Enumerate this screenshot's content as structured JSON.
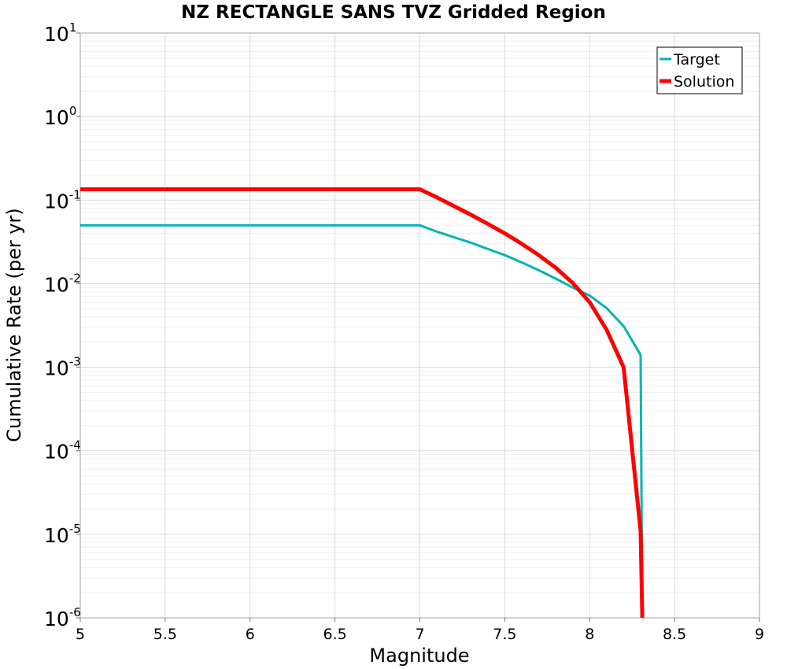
{
  "chart_data": {
    "type": "line",
    "title": "NZ RECTANGLE SANS TVZ Gridded Region",
    "xlabel": "Magnitude",
    "ylabel": "Cumulative Rate (per yr)",
    "xlim": [
      5,
      9
    ],
    "ylim": [
      1e-06,
      10
    ],
    "y_scale": "log",
    "grid": true,
    "legend_position": "top-right",
    "x_ticks": [
      "5",
      "5.5",
      "6",
      "6.5",
      "7",
      "7.5",
      "8",
      "8.5",
      "9"
    ],
    "y_ticks": [
      {
        "base": "10",
        "exp": "1"
      },
      {
        "base": "10",
        "exp": "0"
      },
      {
        "base": "10",
        "exp": "-1"
      },
      {
        "base": "10",
        "exp": "-2"
      },
      {
        "base": "10",
        "exp": "-3"
      },
      {
        "base": "10",
        "exp": "-4"
      },
      {
        "base": "10",
        "exp": "-5"
      },
      {
        "base": "10",
        "exp": "-6"
      }
    ],
    "series": [
      {
        "name": "Target",
        "color": "#00b4b4",
        "x": [
          5.0,
          7.0,
          7.1,
          7.2,
          7.3,
          7.4,
          7.5,
          7.6,
          7.7,
          7.8,
          7.9,
          8.0,
          8.1,
          8.2,
          8.3,
          8.31
        ],
        "y": [
          0.05,
          0.05,
          0.042,
          0.036,
          0.031,
          0.026,
          0.022,
          0.018,
          0.0145,
          0.0115,
          0.009,
          0.0072,
          0.0051,
          0.0031,
          0.0014,
          1e-06
        ]
      },
      {
        "name": "Solution",
        "color": "#ff0000",
        "x": [
          5.0,
          7.0,
          7.1,
          7.2,
          7.3,
          7.4,
          7.5,
          7.6,
          7.7,
          7.8,
          7.9,
          8.0,
          8.1,
          8.2,
          8.3,
          8.31
        ],
        "y": [
          0.135,
          0.135,
          0.108,
          0.085,
          0.067,
          0.052,
          0.04,
          0.03,
          0.022,
          0.0155,
          0.0102,
          0.006,
          0.0028,
          0.001,
          1.1e-05,
          1e-06
        ]
      }
    ]
  }
}
